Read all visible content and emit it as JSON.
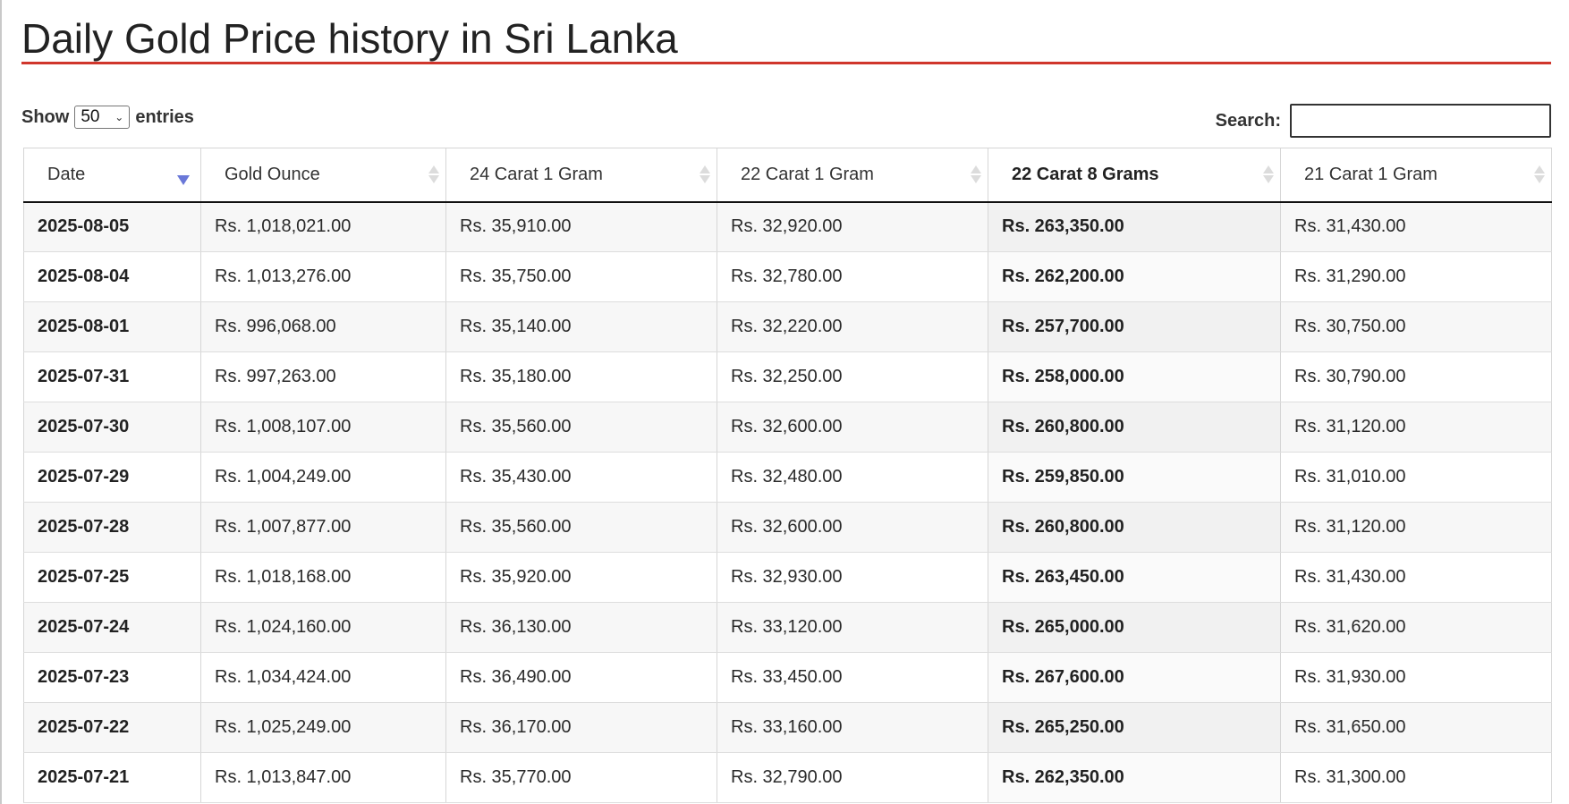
{
  "page": {
    "title": "Daily Gold Price history in Sri Lanka"
  },
  "controls": {
    "show_label": "Show",
    "entries_value": "50",
    "entries_label": "entries",
    "search_label": "Search:",
    "search_value": ""
  },
  "colors": {
    "title_underline": "#d0362c",
    "sort_active": "#6a78d8"
  },
  "table": {
    "sorted_column": "Date",
    "sort_direction": "descending",
    "headers": [
      "Date",
      "Gold Ounce",
      "24 Carat 1 Gram",
      "22 Carat 1 Gram",
      "22 Carat 8 Grams",
      "21 Carat 1 Gram"
    ],
    "rows": [
      [
        "2025-08-05",
        "Rs. 1,018,021.00",
        "Rs. 35,910.00",
        "Rs. 32,920.00",
        "Rs. 263,350.00",
        "Rs. 31,430.00"
      ],
      [
        "2025-08-04",
        "Rs. 1,013,276.00",
        "Rs. 35,750.00",
        "Rs. 32,780.00",
        "Rs. 262,200.00",
        "Rs. 31,290.00"
      ],
      [
        "2025-08-01",
        "Rs. 996,068.00",
        "Rs. 35,140.00",
        "Rs. 32,220.00",
        "Rs. 257,700.00",
        "Rs. 30,750.00"
      ],
      [
        "2025-07-31",
        "Rs. 997,263.00",
        "Rs. 35,180.00",
        "Rs. 32,250.00",
        "Rs. 258,000.00",
        "Rs. 30,790.00"
      ],
      [
        "2025-07-30",
        "Rs. 1,008,107.00",
        "Rs. 35,560.00",
        "Rs. 32,600.00",
        "Rs. 260,800.00",
        "Rs. 31,120.00"
      ],
      [
        "2025-07-29",
        "Rs. 1,004,249.00",
        "Rs. 35,430.00",
        "Rs. 32,480.00",
        "Rs. 259,850.00",
        "Rs. 31,010.00"
      ],
      [
        "2025-07-28",
        "Rs. 1,007,877.00",
        "Rs. 35,560.00",
        "Rs. 32,600.00",
        "Rs. 260,800.00",
        "Rs. 31,120.00"
      ],
      [
        "2025-07-25",
        "Rs. 1,018,168.00",
        "Rs. 35,920.00",
        "Rs. 32,930.00",
        "Rs. 263,450.00",
        "Rs. 31,430.00"
      ],
      [
        "2025-07-24",
        "Rs. 1,024,160.00",
        "Rs. 36,130.00",
        "Rs. 33,120.00",
        "Rs. 265,000.00",
        "Rs. 31,620.00"
      ],
      [
        "2025-07-23",
        "Rs. 1,034,424.00",
        "Rs. 36,490.00",
        "Rs. 33,450.00",
        "Rs. 267,600.00",
        "Rs. 31,930.00"
      ],
      [
        "2025-07-22",
        "Rs. 1,025,249.00",
        "Rs. 36,170.00",
        "Rs. 33,160.00",
        "Rs. 265,250.00",
        "Rs. 31,650.00"
      ],
      [
        "2025-07-21",
        "Rs. 1,013,847.00",
        "Rs. 35,770.00",
        "Rs. 32,790.00",
        "Rs. 262,350.00",
        "Rs. 31,300.00"
      ]
    ]
  }
}
